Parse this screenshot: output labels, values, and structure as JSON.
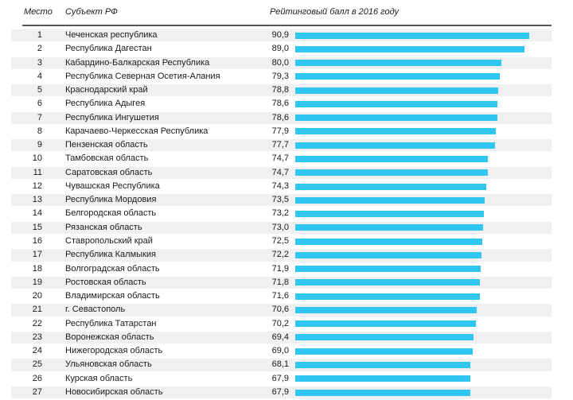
{
  "header": {
    "col_place": "Место",
    "col_region": "Субъект РФ",
    "col_score": "Рейтинговый балл в 2016 году"
  },
  "colors": {
    "bar": "#2fc7f2",
    "stripe": "#f0f0f1",
    "rule": "#58585b",
    "text": "#1a1a1a"
  },
  "rows": [
    {
      "place": "1",
      "region": "Чеченская республика",
      "score_label": "90,9",
      "score": 90.9
    },
    {
      "place": "2",
      "region": "Республика Дагестан",
      "score_label": "89,0",
      "score": 89.0
    },
    {
      "place": "3",
      "region": "Кабардино-Балкарская Республика",
      "score_label": "80,0",
      "score": 80.0
    },
    {
      "place": "4",
      "region": "Республика Северная Осетия-Алания",
      "score_label": "79,3",
      "score": 79.3
    },
    {
      "place": "5",
      "region": "Краснодарский край",
      "score_label": "78,8",
      "score": 78.8
    },
    {
      "place": "6",
      "region": "Республика Адыгея",
      "score_label": "78,6",
      "score": 78.6
    },
    {
      "place": "7",
      "region": "Республика Ингушетия",
      "score_label": "78,6",
      "score": 78.6
    },
    {
      "place": "8",
      "region": "Карачаево-Черкесская Республика",
      "score_label": "77,9",
      "score": 77.9
    },
    {
      "place": "9",
      "region": "Пензенская область",
      "score_label": "77,7",
      "score": 77.7
    },
    {
      "place": "10",
      "region": "Тамбовская область",
      "score_label": "74,7",
      "score": 74.7
    },
    {
      "place": "11",
      "region": "Саратовская область",
      "score_label": "74,7",
      "score": 74.7
    },
    {
      "place": "12",
      "region": "Чувашская Республика",
      "score_label": "74,3",
      "score": 74.3
    },
    {
      "place": "13",
      "region": "Республика Мордовия",
      "score_label": "73,5",
      "score": 73.5
    },
    {
      "place": "14",
      "region": "Белгородская область",
      "score_label": "73,2",
      "score": 73.2
    },
    {
      "place": "15",
      "region": "Рязанская область",
      "score_label": "73,0",
      "score": 73.0
    },
    {
      "place": "16",
      "region": "Ставропольский край",
      "score_label": "72,5",
      "score": 72.5
    },
    {
      "place": "17",
      "region": "Республика Калмыкия",
      "score_label": "72,2",
      "score": 72.2
    },
    {
      "place": "18",
      "region": "Волгоградская область",
      "score_label": "71,9",
      "score": 71.9
    },
    {
      "place": "19",
      "region": "Ростовская область",
      "score_label": "71,8",
      "score": 71.8
    },
    {
      "place": "20",
      "region": "Владимирская область",
      "score_label": "71,6",
      "score": 71.6
    },
    {
      "place": "21",
      "region": "г. Севастополь",
      "score_label": "70,6",
      "score": 70.6
    },
    {
      "place": "22",
      "region": "Республика Татарстан",
      "score_label": "70,2",
      "score": 70.2
    },
    {
      "place": "23",
      "region": "Воронежская область",
      "score_label": "69,4",
      "score": 69.4
    },
    {
      "place": "24",
      "region": "Нижегородская область",
      "score_label": "69,0",
      "score": 69.0
    },
    {
      "place": "25",
      "region": "Ульяновская область",
      "score_label": "68,1",
      "score": 68.1
    },
    {
      "place": "26",
      "region": "Курская область",
      "score_label": "67,9",
      "score": 67.9
    },
    {
      "place": "27",
      "region": "Новосибирская область",
      "score_label": "67,9",
      "score": 67.9
    }
  ],
  "chart_data": {
    "type": "bar",
    "orientation": "horizontal",
    "title": "Рейтинговый балл в 2016 году",
    "categories": [
      "Чеченская республика",
      "Республика Дагестан",
      "Кабардино-Балкарская Республика",
      "Республика Северная Осетия-Алания",
      "Краснодарский край",
      "Республика Адыгея",
      "Республика Ингушетия",
      "Карачаево-Черкесская Республика",
      "Пензенская область",
      "Тамбовская область",
      "Саратовская область",
      "Чувашская Республика",
      "Республика Мордовия",
      "Белгородская область",
      "Рязанская область",
      "Ставропольский край",
      "Республика Калмыкия",
      "Волгоградская область",
      "Ростовская область",
      "Владимирская область",
      "г. Севастополь",
      "Республика Татарстан",
      "Воронежская область",
      "Нижегородская область",
      "Ульяновская область",
      "Курская область",
      "Новосибирская область"
    ],
    "values": [
      90.9,
      89.0,
      80.0,
      79.3,
      78.8,
      78.6,
      78.6,
      77.9,
      77.7,
      74.7,
      74.7,
      74.3,
      73.5,
      73.2,
      73.0,
      72.5,
      72.2,
      71.9,
      71.8,
      71.6,
      70.6,
      70.2,
      69.4,
      69.0,
      68.1,
      67.9,
      67.9
    ],
    "xlabel": "",
    "ylabel": "",
    "xlim": [
      0,
      100
    ],
    "grid": false,
    "legend_position": "none"
  }
}
